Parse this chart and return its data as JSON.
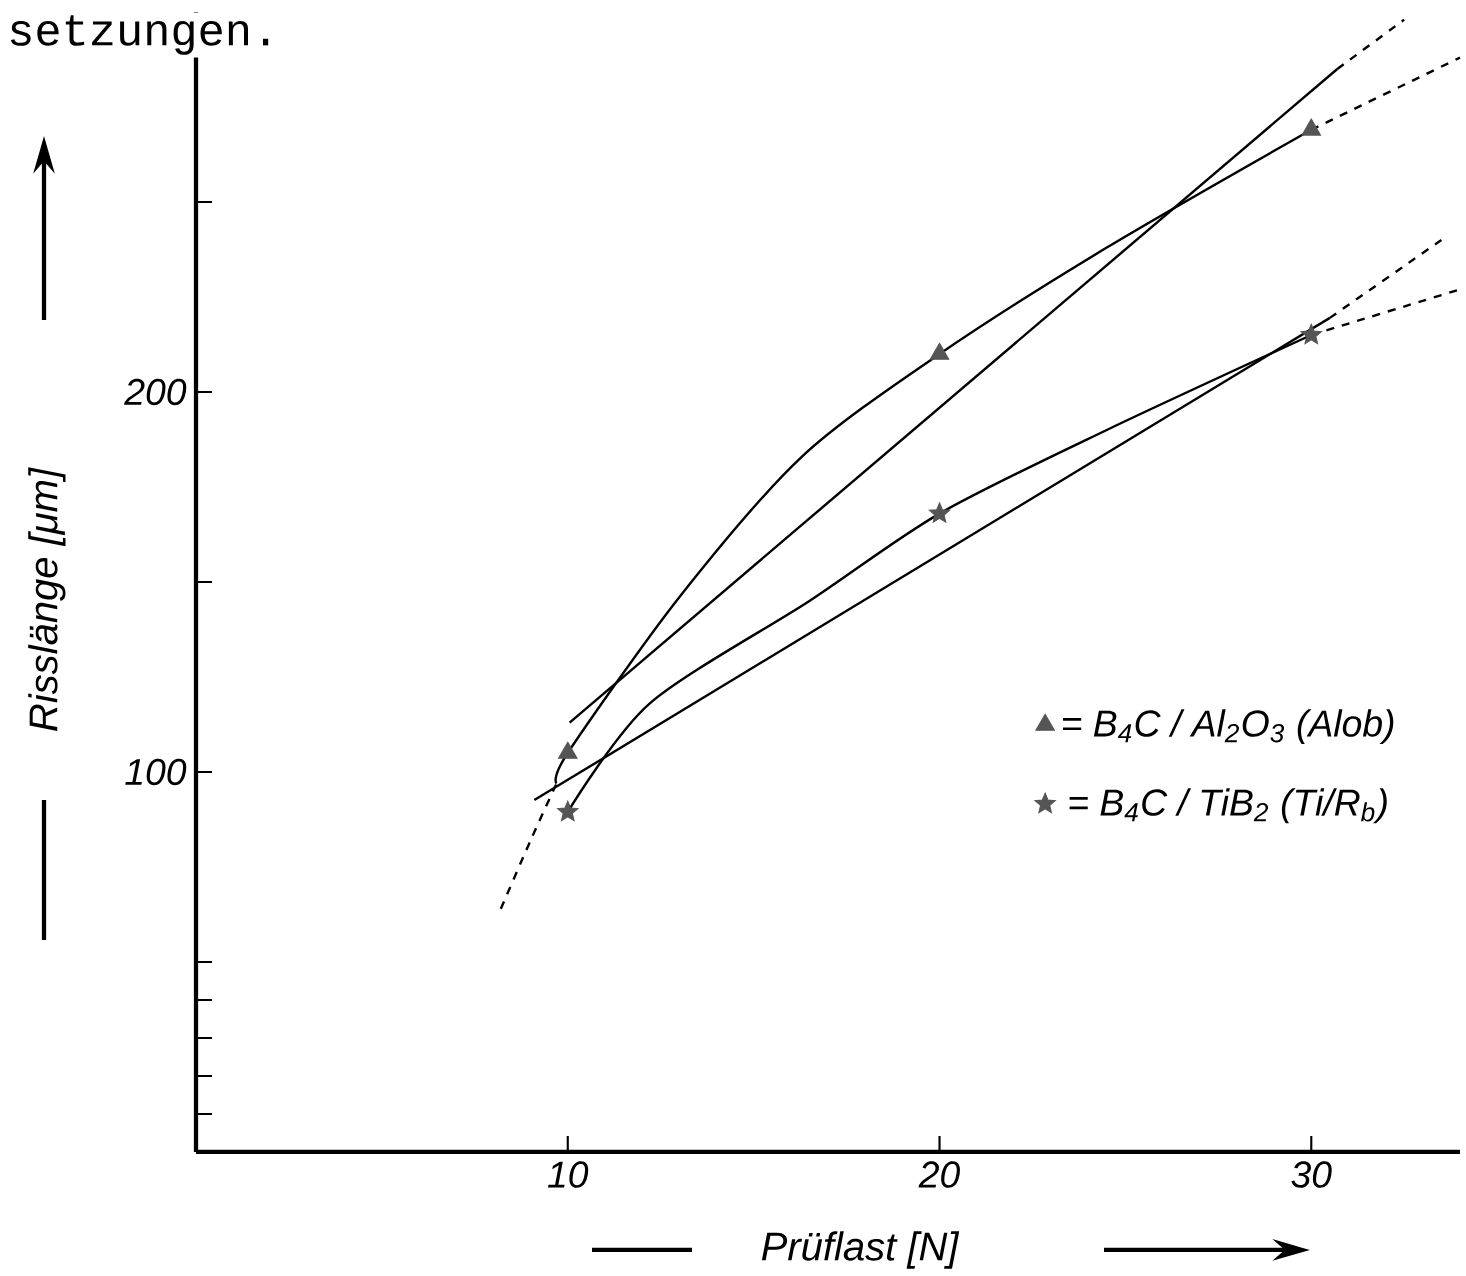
{
  "chart_data": {
    "type": "line",
    "xlabel": "Prüflast [N]",
    "ylabel": "Risslänge [μm]",
    "annotations": [
      "setzungen."
    ],
    "xlim": [
      0,
      34
    ],
    "ylim": [
      0,
      300
    ],
    "xticks": [
      10,
      20,
      30
    ],
    "yticks": [
      {
        "value": 10,
        "label": null
      },
      {
        "value": 20,
        "label": null
      },
      {
        "value": 30,
        "label": null
      },
      {
        "value": 40,
        "label": null
      },
      {
        "value": 50,
        "label": null
      },
      100,
      {
        "value": 150,
        "label": null
      },
      200,
      {
        "value": 250,
        "label": null
      }
    ],
    "legend": "right",
    "marker": "none",
    "series": [
      {
        "color": "#000000",
        "line_style": "dashed",
        "x": [
          8.2,
          9.0,
          9.7
        ],
        "values": [
          64,
          82,
          97
        ]
      },
      {
        "color": "#000000",
        "line_style": "solid",
        "x": [
          9.7,
          10,
          13,
          16.3,
          20,
          24.5,
          30
        ],
        "values": [
          97,
          105,
          146,
          183,
          210,
          238,
          269
        ]
      },
      {
        "color": "#000000",
        "line_style": "dashed",
        "x": [
          30,
          34
        ],
        "values": [
          269,
          288
        ]
      },
      {
        "color": "#000000",
        "line_style": "solid",
        "x": [
          10.05,
          30.7
        ],
        "values": [
          113,
          285
        ]
      },
      {
        "color": "#000000",
        "line_style": "dashed",
        "x": [
          30.7,
          32.5
        ],
        "values": [
          285,
          298
        ]
      },
      {
        "color": "#000000",
        "line_style": "solid",
        "x": [
          10,
          12.2,
          16.5,
          20,
          24.5,
          30
        ],
        "values": [
          89.5,
          118,
          145,
          168,
          190,
          215
        ]
      },
      {
        "color": "#000000",
        "line_style": "dashed",
        "x": [
          30,
          34
        ],
        "values": [
          215,
          227
        ]
      },
      {
        "color": "#000000",
        "line_style": "solid",
        "x": [
          9.1,
          30.5
        ],
        "values": [
          92.6,
          219.5
        ]
      },
      {
        "color": "#000000",
        "line_style": "dashed",
        "x": [
          30.5,
          33.5
        ],
        "values": [
          219.5,
          240
        ]
      },
      {
        "type": "scatter",
        "name": "= B$_{4}$C / Al$_{2}$O$_{3}$ (Alob)",
        "color": "#555555",
        "marker": "triangle",
        "x": [
          10,
          20,
          30
        ],
        "values": [
          105,
          210,
          269
        ]
      },
      {
        "type": "scatter",
        "name": "= B$_{4}$C / TiB$_{2}$ (Ti/R$_{b}$)",
        "color": "#555555",
        "marker": "star",
        "x": [
          10,
          20,
          30
        ],
        "values": [
          89.5,
          168,
          215
        ]
      }
    ]
  }
}
